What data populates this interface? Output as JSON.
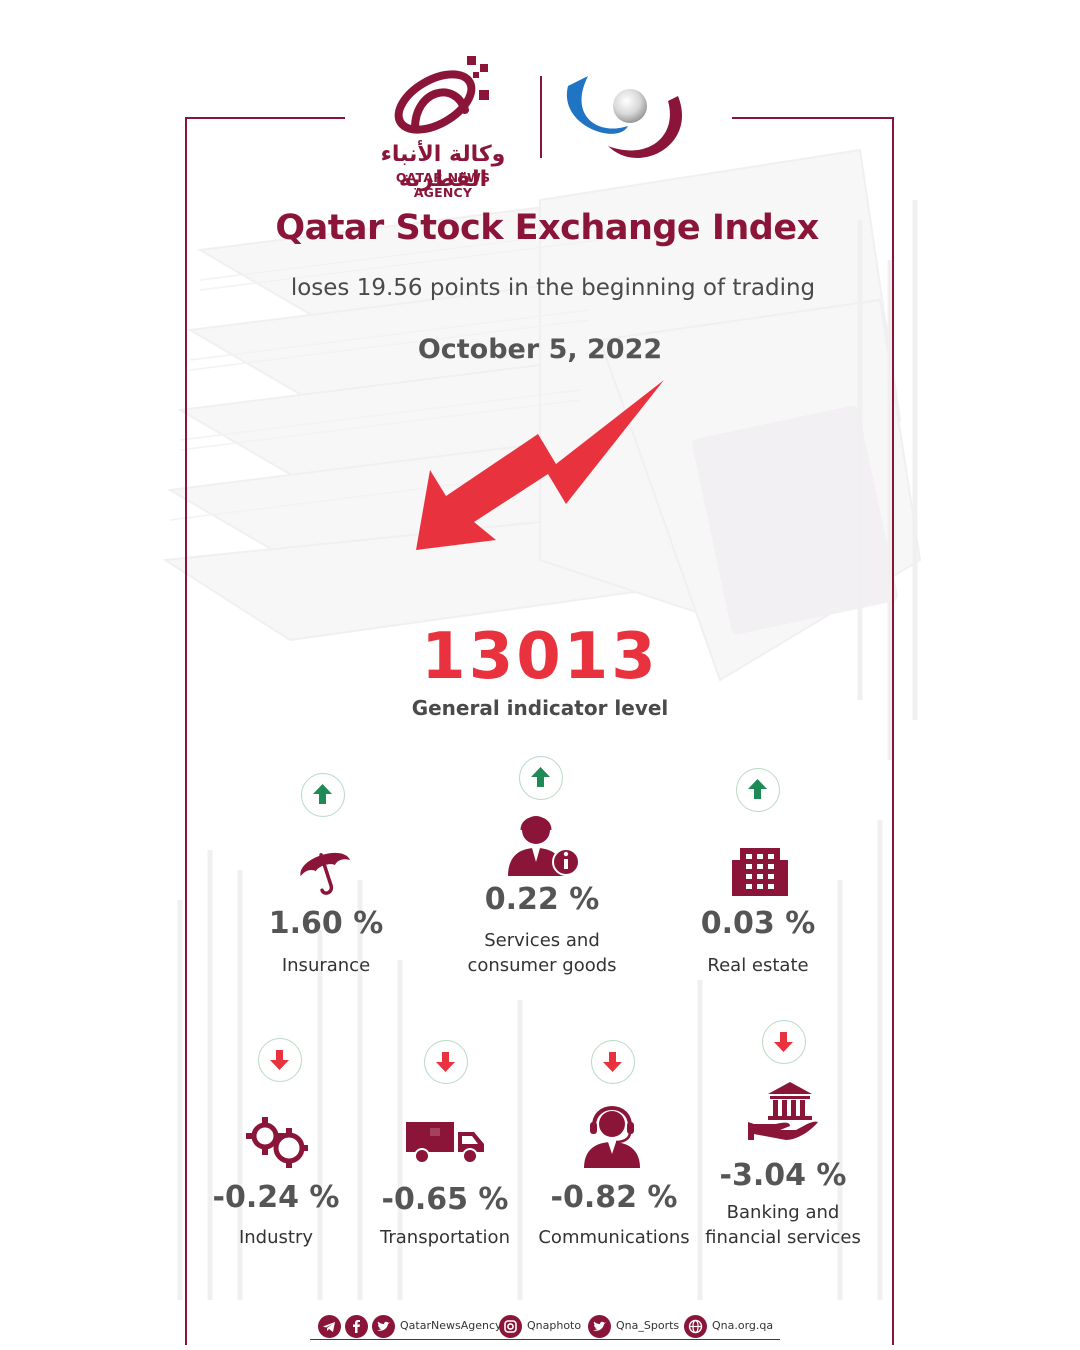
{
  "logos": {
    "qna_arabic": "وكالة الأنباء القطرية",
    "qna_english": "QATAR NEWS AGENCY"
  },
  "header": {
    "title": "Qatar Stock Exchange Index",
    "subtitle": "loses 19.56 points in the beginning of trading",
    "date": "October 5, 2022"
  },
  "indicator": {
    "value": "13013",
    "label": "General indicator level"
  },
  "sectors_up": [
    {
      "pct": "1.60 %",
      "label_line1": "Insurance",
      "label_line2": "",
      "icon": "umbrella-icon"
    },
    {
      "pct": "0.22 %",
      "label_line1": "Services and",
      "label_line2": "consumer goods",
      "icon": "customer-service-icon"
    },
    {
      "pct": "0.03 %",
      "label_line1": "Real estate",
      "label_line2": "",
      "icon": "building-icon"
    }
  ],
  "sectors_down": [
    {
      "pct": "-0.24 %",
      "label_line1": "Industry",
      "label_line2": "",
      "icon": "gears-icon"
    },
    {
      "pct": "-0.65 %",
      "label_line1": "Transportation",
      "label_line2": "",
      "icon": "truck-icon"
    },
    {
      "pct": "-0.82 %",
      "label_line1": "Communications",
      "label_line2": "",
      "icon": "headset-icon"
    },
    {
      "pct": "-3.04 %",
      "label_line1": "Banking and",
      "label_line2": "financial services",
      "icon": "bank-hand-icon"
    }
  ],
  "footer": {
    "handle_main": "QatarNewsAgency",
    "handle_photo": "Qnaphoto",
    "handle_sports": "Qna_Sports",
    "website": "Qna.org.qa"
  },
  "colors": {
    "brand": "#8a1538",
    "down": "#e8333f",
    "up": "#1f8a55",
    "badge_border": "#b9d9c4"
  }
}
